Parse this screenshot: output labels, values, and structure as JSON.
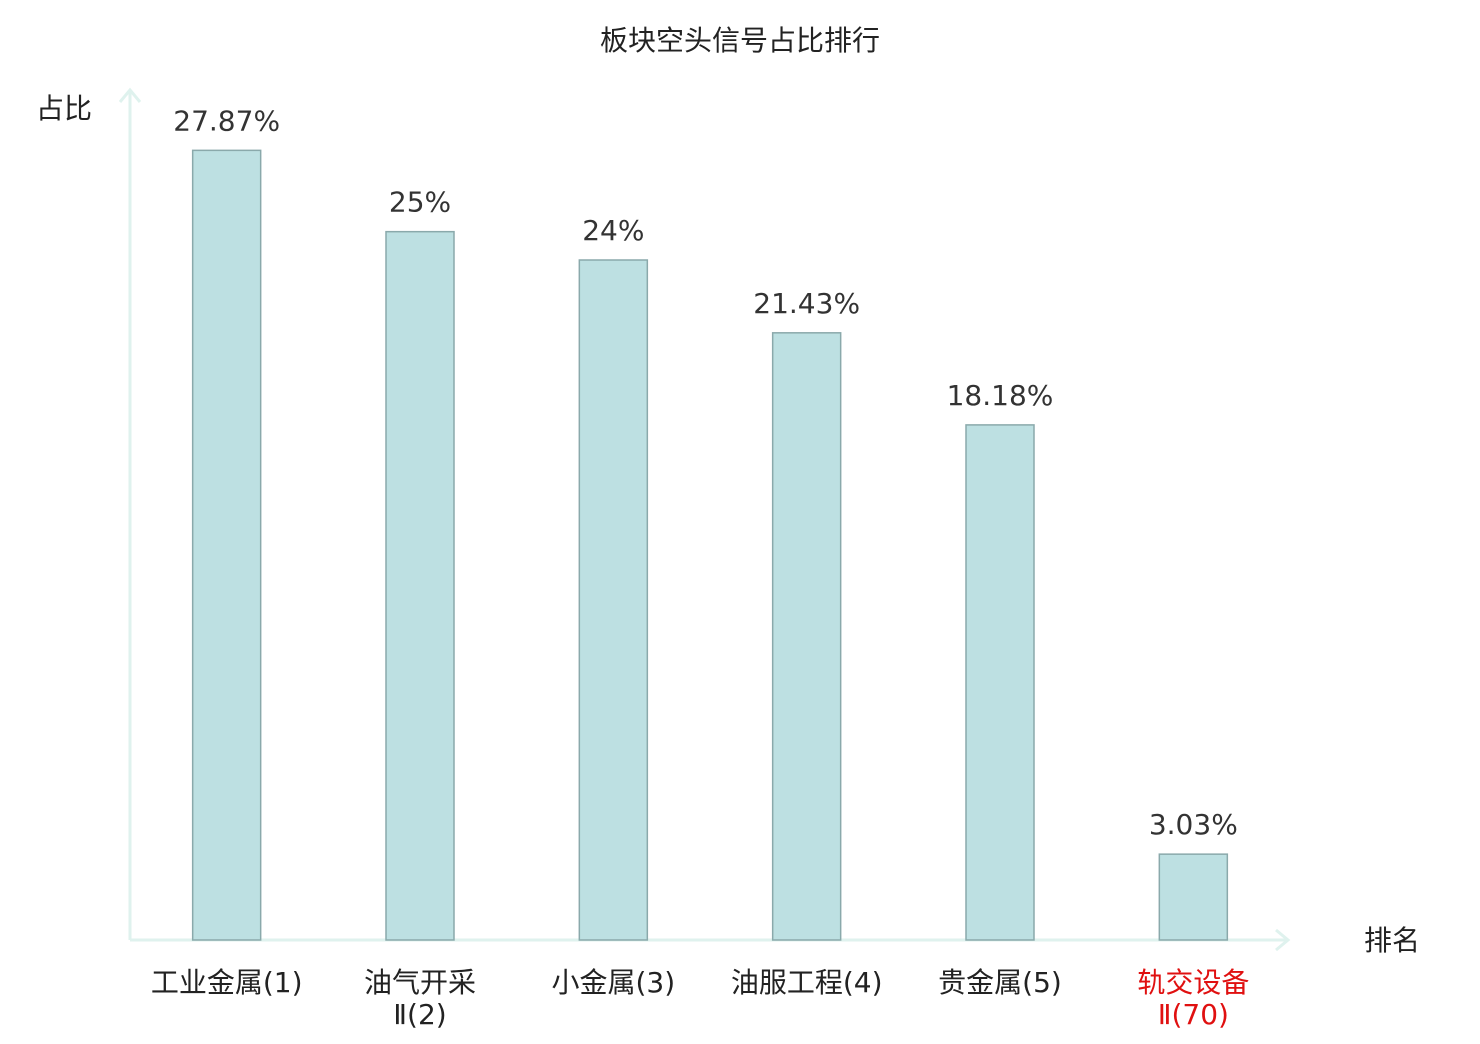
{
  "chart_data": {
    "type": "bar",
    "title": "板块空头信号占比排行",
    "y_label": "占比",
    "x_label": "排名",
    "categories": [
      "工业金属(1)",
      "油气开采\nⅡ(2)",
      "小金属(3)",
      "油服工程(4)",
      "贵金属(5)",
      "轨交设备\nⅡ(70)"
    ],
    "category_label_colors": [
      "#222222",
      "#222222",
      "#222222",
      "#222222",
      "#222222",
      "#e01010"
    ],
    "values": [
      27.87,
      25,
      24,
      21.43,
      18.18,
      3.03
    ],
    "value_labels": [
      "27.87%",
      "25%",
      "24%",
      "21.43%",
      "18.18%",
      "3.03%"
    ],
    "color": "#bde0e2",
    "ylim": [
      0,
      30
    ]
  }
}
